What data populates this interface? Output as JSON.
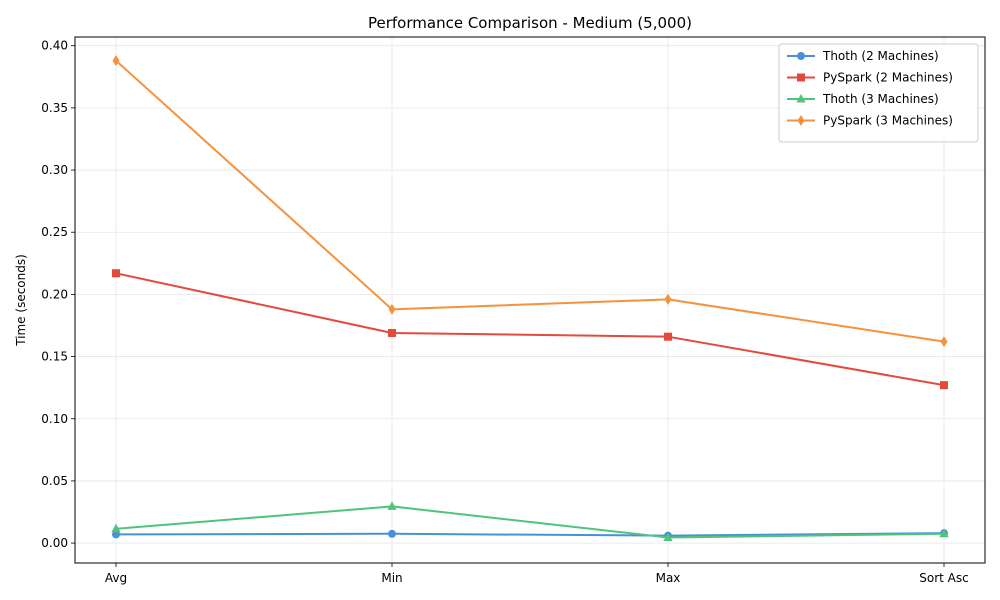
{
  "chart_data": {
    "type": "line",
    "title": "Performance Comparison - Medium (5,000)",
    "xlabel": "",
    "ylabel": "Time (seconds)",
    "categories": [
      "Avg",
      "Min",
      "Max",
      "Sort Asc"
    ],
    "ylim": [
      -0.016,
      0.407
    ],
    "yticks": [
      0.0,
      0.05,
      0.1,
      0.15,
      0.2,
      0.25,
      0.3,
      0.35,
      0.4
    ],
    "ytick_labels": [
      "0.00",
      "0.05",
      "0.10",
      "0.15",
      "0.20",
      "0.25",
      "0.30",
      "0.35",
      "0.40"
    ],
    "grid": true,
    "legend_position": "top-right",
    "series": [
      {
        "name": "Thoth (2 Machines)",
        "values": [
          0.007,
          0.0075,
          0.006,
          0.008
        ],
        "color": "#4a90d9",
        "marker": "circle"
      },
      {
        "name": "PySpark (2 Machines)",
        "values": [
          0.217,
          0.169,
          0.166,
          0.127
        ],
        "color": "#e24a3b",
        "marker": "square"
      },
      {
        "name": "Thoth (3 Machines)",
        "values": [
          0.0115,
          0.0295,
          0.0045,
          0.0075
        ],
        "color": "#50c47a",
        "marker": "triangle"
      },
      {
        "name": "PySpark (3 Machines)",
        "values": [
          0.388,
          0.188,
          0.196,
          0.162
        ],
        "color": "#f5923e",
        "marker": "diamond"
      }
    ]
  }
}
